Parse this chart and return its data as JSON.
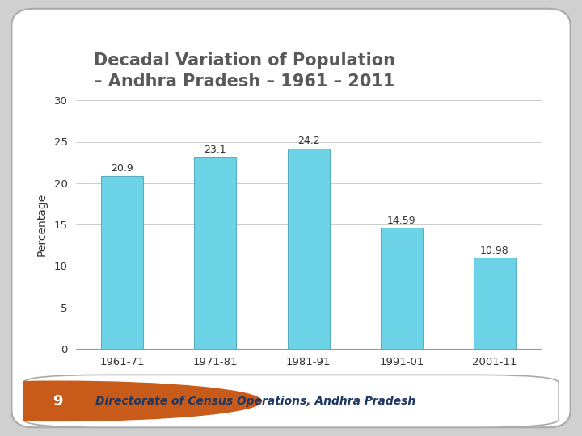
{
  "title_line1": "Decadal Variation of Population",
  "title_line2": "– Andhra Pradesh – 1961 – 2011",
  "categories": [
    "1961-71",
    "1971-81",
    "1981-91",
    "1991-01",
    "2001-11"
  ],
  "values": [
    20.9,
    23.1,
    24.2,
    14.59,
    10.98
  ],
  "bar_color": "#6DD4E8",
  "bar_edge_color": "#5AADBE",
  "ylabel": "Percentage",
  "ylim": [
    0,
    30
  ],
  "yticks": [
    0,
    5,
    10,
    15,
    20,
    25,
    30
  ],
  "slide_bg": "#D0D0D0",
  "card_bg": "#FFFFFF",
  "title_color": "#595959",
  "title_fontsize": 15,
  "label_fontsize": 10,
  "tick_fontsize": 9.5,
  "value_fontsize": 9,
  "footer_text": "Directorate of Census Operations, Andhra Pradesh",
  "footer_number": "9",
  "footer_badge_color": "#C95B1A",
  "footer_text_color": "#1F3864",
  "footer_bg": "#FFFFFF",
  "grid_color": "#CCCCCC"
}
